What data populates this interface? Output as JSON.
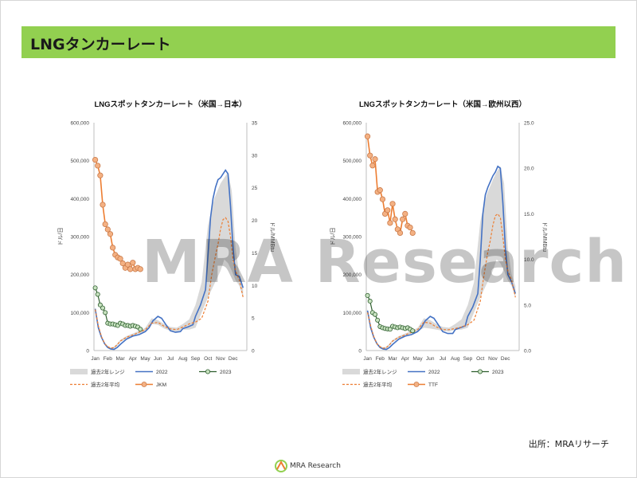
{
  "page": {
    "title": "LNGタンカーレート",
    "source": "出所：MRAリサーチ",
    "watermark": "MRA Research",
    "footer_logo_text": "MRA Research",
    "colors": {
      "header": "#92d050",
      "range_band": "#d9d9d9",
      "y2022": "#4472c4",
      "y2023": "#2e5e2e",
      "avg": "#ed7d31",
      "price": "#ed7d31",
      "price_marker_fill": "#f4b183"
    }
  },
  "chart_data": [
    {
      "type": "line",
      "title": "LNGスポットタンカーレート（米国→日本）",
      "ylabel": "ドル/日",
      "y2label": "ドル/MMBtu",
      "ylim": [
        0,
        600000
      ],
      "y2lim": [
        0,
        35
      ],
      "yticks": [
        "0",
        "100,000",
        "200,000",
        "300,000",
        "400,000",
        "500,000",
        "600,000"
      ],
      "y2ticks": [
        "0",
        "5",
        "10",
        "15",
        "20",
        "25",
        "30",
        "35"
      ],
      "months": [
        "Jan",
        "Feb",
        "Mar",
        "Apr",
        "May",
        "Jun",
        "Jul",
        "Aug",
        "Sep",
        "Oct",
        "Nov",
        "Dec"
      ],
      "legend": [
        "過去2年レンジ",
        "2022",
        "2023",
        "過去2年平均",
        "JKM"
      ],
      "range_band": {
        "x": [
          0,
          0.25,
          0.5,
          0.75,
          1,
          1.25,
          1.5,
          1.75,
          2,
          2.5,
          3,
          3.5,
          4,
          4.5,
          5,
          5.5,
          6,
          6.5,
          7,
          7.5,
          8,
          8.5,
          9,
          9.5,
          10,
          10.3,
          10.6,
          10.9,
          11.2,
          11.5,
          11.8
        ],
        "upper": [
          115000,
          70000,
          40000,
          20000,
          12000,
          8000,
          10000,
          18000,
          28000,
          38000,
          45000,
          52000,
          60000,
          85000,
          80000,
          70000,
          62000,
          60000,
          70000,
          82000,
          120000,
          180000,
          330000,
          400000,
          440000,
          455000,
          470000,
          420000,
          270000,
          200000,
          170000
        ],
        "lower": [
          105000,
          60000,
          32000,
          15000,
          8000,
          4000,
          5000,
          12000,
          22000,
          32000,
          38000,
          45000,
          50000,
          70000,
          68000,
          58000,
          52000,
          50000,
          55000,
          55000,
          60000,
          100000,
          140000,
          175000,
          210000,
          240000,
          230000,
          210000,
          185000,
          170000,
          140000
        ]
      },
      "series_2022": {
        "x": [
          0,
          0.25,
          0.5,
          0.75,
          1,
          1.25,
          1.5,
          1.75,
          2,
          2.5,
          3,
          3.5,
          4,
          4.3,
          4.6,
          5,
          5.3,
          5.6,
          6,
          6.4,
          6.8,
          7,
          7.4,
          7.8,
          8,
          8.4,
          8.8,
          9,
          9.2,
          9.4,
          9.6,
          9.8,
          10,
          10.2,
          10.4,
          10.6,
          10.8,
          11,
          11.2,
          11.5,
          11.8
        ],
        "values": [
          110000,
          60000,
          35000,
          18000,
          8000,
          4000,
          3000,
          8000,
          16000,
          30000,
          38000,
          42000,
          50000,
          60000,
          78000,
          90000,
          85000,
          70000,
          52000,
          48000,
          50000,
          58000,
          62000,
          68000,
          90000,
          120000,
          160000,
          250000,
          350000,
          400000,
          430000,
          450000,
          455000,
          465000,
          475000,
          465000,
          380000,
          270000,
          200000,
          195000,
          165000
        ]
      },
      "series_avg": {
        "x": [
          0,
          0.25,
          0.5,
          0.75,
          1,
          1.25,
          1.5,
          1.75,
          2,
          2.5,
          3,
          3.5,
          4,
          4.5,
          5,
          5.5,
          6,
          6.5,
          7,
          7.5,
          8,
          8.5,
          9,
          9.3,
          9.6,
          9.8,
          10,
          10.2,
          10.4,
          10.6,
          10.8,
          11,
          11.2,
          11.5,
          11.8
        ],
        "values": [
          108000,
          65000,
          37000,
          18000,
          10000,
          6000,
          8000,
          15000,
          25000,
          35000,
          41000,
          48000,
          55000,
          72000,
          74000,
          64000,
          57000,
          55000,
          62000,
          70000,
          75000,
          85000,
          130000,
          200000,
          250000,
          280000,
          320000,
          345000,
          350000,
          340000,
          300000,
          240000,
          210000,
          185000,
          140000
        ]
      },
      "series_2023": {
        "x": [
          0,
          0.2,
          0.4,
          0.6,
          0.8,
          1,
          1.2,
          1.4,
          1.6,
          1.8,
          2,
          2.2,
          2.4,
          2.6,
          2.8,
          3,
          3.2,
          3.4,
          3.6
        ],
        "values": [
          165000,
          148000,
          120000,
          112000,
          100000,
          72000,
          70000,
          70000,
          68000,
          66000,
          72000,
          70000,
          66000,
          66000,
          64000,
          66000,
          64000,
          62000,
          56000
        ]
      },
      "series_price": {
        "name": "JKM",
        "x": [
          0,
          0.2,
          0.4,
          0.6,
          0.8,
          1,
          1.2,
          1.4,
          1.6,
          1.8,
          2,
          2.2,
          2.4,
          2.6,
          2.8,
          3,
          3.2,
          3.4,
          3.6
        ],
        "values": [
          29.3,
          28.4,
          26.9,
          22.4,
          19.4,
          18.6,
          17.9,
          15.8,
          14.7,
          14.3,
          14.1,
          13.4,
          12.7,
          13.2,
          12.5,
          13.5,
          12.5,
          12.7,
          12.5
        ]
      }
    },
    {
      "type": "line",
      "title": "LNGスポットタンカーレート（米国→欧州以西）",
      "ylabel": "ドル/日",
      "y2label": "ドル/MMBtu",
      "ylim": [
        0,
        600000
      ],
      "y2lim": [
        0,
        25
      ],
      "yticks": [
        "0",
        "100,000",
        "200,000",
        "300,000",
        "400,000",
        "500,000",
        "600,000"
      ],
      "y2ticks": [
        "0.0",
        "5.0",
        "10.0",
        "15.0",
        "20.0",
        "25.0"
      ],
      "months": [
        "Jan",
        "Feb",
        "Mar",
        "Apr",
        "May",
        "Jun",
        "Jul",
        "Aug",
        "Sep",
        "Oct",
        "Nov",
        "Dec"
      ],
      "legend": [
        "過去2年レンジ",
        "2022",
        "2023",
        "過去2年平均",
        "TTF"
      ],
      "range_band": {
        "x": [
          0,
          0.25,
          0.5,
          0.75,
          1,
          1.25,
          1.5,
          1.75,
          2,
          2.5,
          3,
          3.5,
          4,
          4.5,
          5,
          5.5,
          6,
          6.5,
          7,
          7.5,
          8,
          8.5,
          9,
          9.5,
          10,
          10.3,
          10.6,
          10.9,
          11.2,
          11.5,
          11.8
        ],
        "upper": [
          110000,
          70000,
          40000,
          20000,
          12000,
          8000,
          10000,
          18000,
          28000,
          38000,
          45000,
          52000,
          60000,
          85000,
          80000,
          70000,
          62000,
          60000,
          70000,
          82000,
          120000,
          180000,
          340000,
          410000,
          450000,
          470000,
          485000,
          440000,
          270000,
          200000,
          170000
        ],
        "lower": [
          100000,
          60000,
          32000,
          15000,
          8000,
          4000,
          5000,
          12000,
          22000,
          32000,
          38000,
          45000,
          50000,
          60000,
          58000,
          55000,
          52000,
          50000,
          55000,
          55000,
          60000,
          100000,
          140000,
          175000,
          210000,
          240000,
          230000,
          210000,
          185000,
          170000,
          140000
        ]
      },
      "series_2022": {
        "x": [
          0,
          0.25,
          0.5,
          0.75,
          1,
          1.25,
          1.5,
          1.75,
          2,
          2.5,
          3,
          3.5,
          4,
          4.3,
          4.6,
          5,
          5.3,
          5.6,
          6,
          6.4,
          6.8,
          7,
          7.4,
          7.8,
          8,
          8.4,
          8.8,
          9,
          9.2,
          9.4,
          9.6,
          9.8,
          10,
          10.2,
          10.4,
          10.6,
          10.8,
          11,
          11.2,
          11.5,
          11.8
        ],
        "values": [
          105000,
          60000,
          35000,
          18000,
          8000,
          4000,
          3000,
          8000,
          16000,
          30000,
          38000,
          42000,
          50000,
          60000,
          78000,
          90000,
          85000,
          70000,
          50000,
          45000,
          45000,
          55000,
          60000,
          65000,
          90000,
          115000,
          150000,
          240000,
          360000,
          410000,
          430000,
          445000,
          460000,
          470000,
          485000,
          480000,
          390000,
          270000,
          200000,
          180000,
          150000
        ]
      },
      "series_avg": {
        "x": [
          0,
          0.25,
          0.5,
          0.75,
          1,
          1.25,
          1.5,
          1.75,
          2,
          2.5,
          3,
          3.5,
          4,
          4.5,
          5,
          5.5,
          6,
          6.5,
          7,
          7.5,
          8,
          8.5,
          9,
          9.3,
          9.6,
          9.8,
          10,
          10.2,
          10.4,
          10.6,
          10.8,
          11,
          11.2,
          11.5,
          11.8
        ],
        "values": [
          100000,
          65000,
          37000,
          18000,
          10000,
          6000,
          8000,
          15000,
          25000,
          35000,
          41000,
          48000,
          55000,
          75000,
          72000,
          62000,
          55000,
          55000,
          58000,
          62000,
          68000,
          80000,
          130000,
          200000,
          260000,
          290000,
          330000,
          355000,
          360000,
          350000,
          300000,
          240000,
          210000,
          185000,
          140000
        ]
      },
      "series_2023": {
        "x": [
          0,
          0.2,
          0.4,
          0.6,
          0.8,
          1,
          1.2,
          1.4,
          1.6,
          1.8,
          2,
          2.2,
          2.4,
          2.6,
          2.8,
          3,
          3.2,
          3.4,
          3.6
        ],
        "values": [
          145000,
          130000,
          100000,
          95000,
          80000,
          63000,
          60000,
          58000,
          57000,
          56000,
          64000,
          62000,
          60000,
          62000,
          60000,
          58000,
          60000,
          56000,
          52000
        ]
      },
      "series_price": {
        "name": "TTF",
        "x": [
          0,
          0.2,
          0.4,
          0.6,
          0.8,
          1,
          1.2,
          1.4,
          1.6,
          1.8,
          2,
          2.2,
          2.4,
          2.6,
          2.8,
          3,
          3.2,
          3.4,
          3.6
        ],
        "values": [
          23.5,
          21.4,
          20.3,
          21.0,
          17.4,
          17.6,
          16.6,
          15.0,
          15.4,
          14.0,
          16.1,
          14.4,
          13.3,
          12.9,
          14.4,
          15.0,
          13.7,
          13.5,
          12.9
        ]
      }
    }
  ]
}
